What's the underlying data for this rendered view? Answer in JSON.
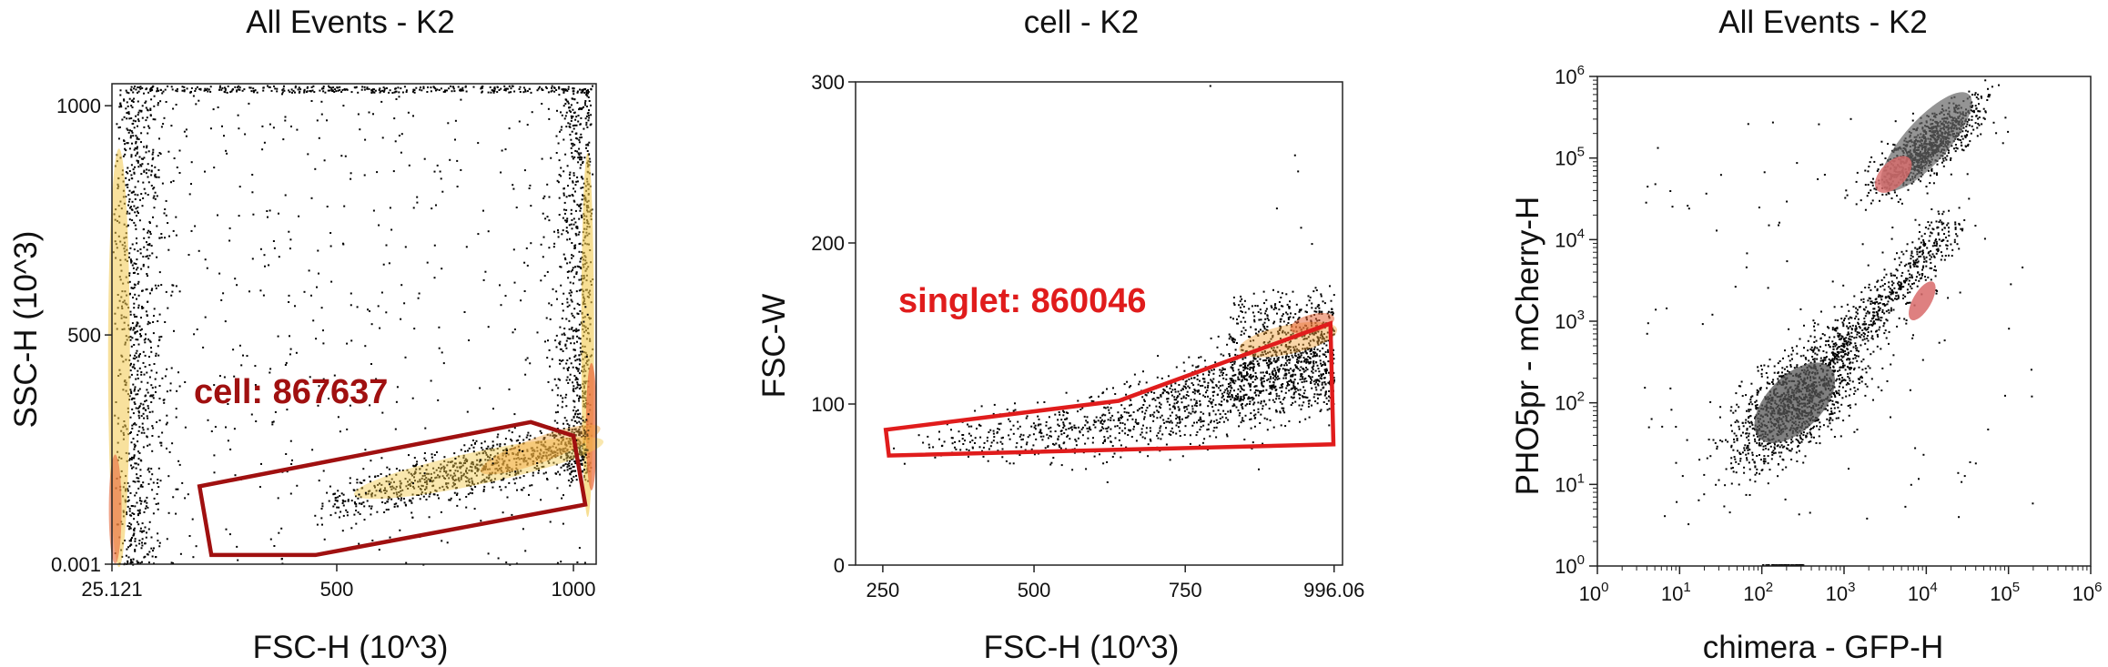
{
  "chart_data": [
    {
      "type": "scatter",
      "title": "All Events - K2",
      "xlabel": "FSC-H (10^3)",
      "ylabel": "SSC-H (10^3)",
      "xlim": [
        25.121,
        1048
      ],
      "ylim": [
        0.001,
        1048
      ],
      "x_ticks": [
        {
          "value": 25.121,
          "label": "25.121"
        },
        {
          "value": 500,
          "label": "500"
        },
        {
          "value": 1000,
          "label": "1000"
        }
      ],
      "y_ticks": [
        {
          "value": 0.001,
          "label": "0.001"
        },
        {
          "value": 500,
          "label": "500"
        },
        {
          "value": 1000,
          "label": "1000"
        }
      ],
      "gate": {
        "name": "cell",
        "label": "cell: 867637",
        "color": "#a01010",
        "vertices": [
          [
            210,
            170
          ],
          [
            235,
            20
          ],
          [
            455,
            20
          ],
          [
            1025,
            130
          ],
          [
            1000,
            280
          ],
          [
            910,
            310
          ]
        ]
      },
      "density_regions": [
        {
          "x": [
            25.121,
            120
          ],
          "y": [
            0.001,
            1048
          ],
          "level": "high"
        },
        {
          "x": [
            950,
            1048
          ],
          "y": [
            180,
            1048
          ],
          "level": "high"
        },
        {
          "x": [
            450,
            1020
          ],
          "y": [
            120,
            320
          ],
          "level": "medium"
        }
      ]
    },
    {
      "type": "scatter",
      "title": "cell - K2",
      "xlabel": "FSC-H (10^3)",
      "ylabel": "FSC-W",
      "xlim": [
        205,
        1010
      ],
      "ylim": [
        0,
        300
      ],
      "x_ticks": [
        {
          "value": 250,
          "label": "250"
        },
        {
          "value": 500,
          "label": "500"
        },
        {
          "value": 750,
          "label": "750"
        },
        {
          "value": 996.06,
          "label": "996.06"
        }
      ],
      "y_ticks": [
        {
          "value": 0,
          "label": "0"
        },
        {
          "value": 100,
          "label": "100"
        },
        {
          "value": 200,
          "label": "200"
        },
        {
          "value": 300,
          "label": "300"
        }
      ],
      "gate": {
        "name": "singlet",
        "label": "singlet: 860046",
        "color": "#e01c1c",
        "vertices": [
          [
            255,
            84
          ],
          [
            260,
            68
          ],
          [
            995,
            75
          ],
          [
            990,
            150
          ],
          [
            640,
            102
          ]
        ]
      },
      "density_regions": [
        {
          "x": [
            850,
            1000
          ],
          "y": [
            100,
            170
          ],
          "level": "high"
        }
      ]
    },
    {
      "type": "scatter",
      "title": "All Events - K2",
      "xlabel": "chimera - GFP-H",
      "ylabel": "PHO5pr - mCherry-H",
      "xscale": "log",
      "yscale": "log",
      "xlim": [
        1,
        1000000
      ],
      "ylim": [
        1,
        1000000
      ],
      "x_ticks": [
        {
          "exp": 0,
          "base": "10",
          "sup": "0"
        },
        {
          "exp": 1,
          "base": "10",
          "sup": "1"
        },
        {
          "exp": 2,
          "base": "10",
          "sup": "2"
        },
        {
          "exp": 3,
          "base": "10",
          "sup": "3"
        },
        {
          "exp": 4,
          "base": "10",
          "sup": "4"
        },
        {
          "exp": 5,
          "base": "10",
          "sup": "5"
        },
        {
          "exp": 6,
          "base": "10",
          "sup": "6"
        }
      ],
      "y_ticks": [
        {
          "exp": 0,
          "base": "10",
          "sup": "0"
        },
        {
          "exp": 1,
          "base": "10",
          "sup": "1"
        },
        {
          "exp": 2,
          "base": "10",
          "sup": "2"
        },
        {
          "exp": 3,
          "base": "10",
          "sup": "3"
        },
        {
          "exp": 4,
          "base": "10",
          "sup": "4"
        },
        {
          "exp": 5,
          "base": "10",
          "sup": "5"
        },
        {
          "exp": 6,
          "base": "10",
          "sup": "6"
        }
      ],
      "populations": [
        {
          "center_log": [
            2.4,
            2.0
          ],
          "level": "high",
          "color": "#555555"
        },
        {
          "center_log": [
            4.0,
            5.2
          ],
          "level": "high",
          "color": "#666666"
        },
        {
          "center_log": [
            3.6,
            4.8
          ],
          "level": "overlay",
          "color": "#d86a6a"
        },
        {
          "center_log": [
            3.95,
            3.25
          ],
          "level": "overlay",
          "color": "#d86a6a"
        }
      ]
    }
  ]
}
